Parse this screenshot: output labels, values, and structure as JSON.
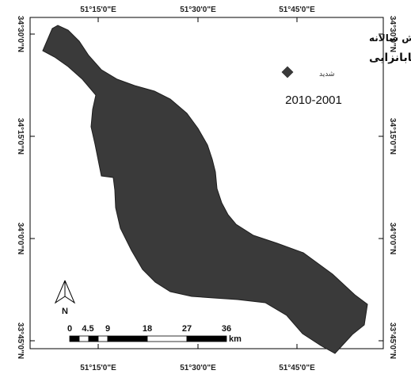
{
  "map": {
    "coords": {
      "top": [
        "51°15'0\"E",
        "51°30'0\"E",
        "51°45'0\"E"
      ],
      "bottom": [
        "51°15'0\"E",
        "51°30'0\"E",
        "51°45'0\"E"
      ],
      "left": [
        "34°30'0\"N",
        "34°15'0\"N",
        "34°0'0\"N",
        "33°45'0\"N"
      ],
      "right": [
        "34°30'0\"N",
        "34°15'0\"N",
        "34°0'0\"N",
        "33°45'0\"N"
      ]
    },
    "legend": {
      "title_line1": "شاخص بارش سالانه",
      "title_line2": "وضعیت بیابانزایی",
      "class_label": "شدید",
      "class_color": "#3a3a3a",
      "period": "2010-2001"
    },
    "north_arrow_label": "N",
    "scale_bar": {
      "ticks": [
        "0",
        "4.5",
        "9",
        "18",
        "27",
        "36"
      ],
      "unit": "km"
    },
    "region_color": "#3a3a3a"
  }
}
